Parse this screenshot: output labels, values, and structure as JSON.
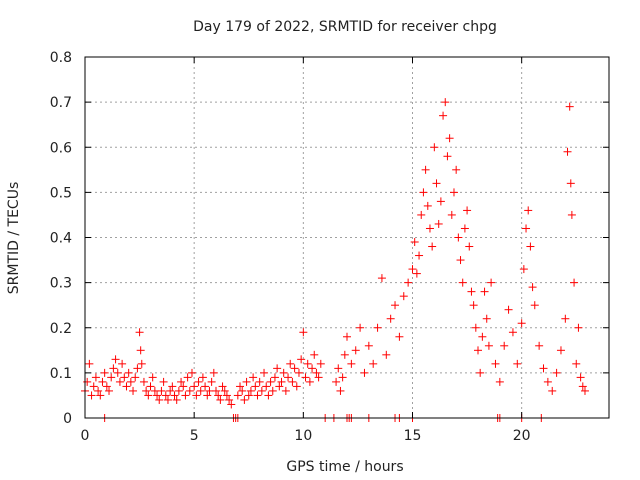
{
  "chart_data": {
    "type": "scatter",
    "title": "Day 179 of 2022, SRMTID for receiver chpg",
    "xlabel": "GPS time / hours",
    "ylabel": "SRMTID / TECUs",
    "xlim": [
      0,
      24
    ],
    "ylim": [
      0,
      0.8
    ],
    "xticks": [
      0,
      5,
      10,
      15,
      20
    ],
    "yticks": [
      0,
      0.1,
      0.2,
      0.3,
      0.4,
      0.5,
      0.6,
      0.7,
      0.8
    ],
    "xtick_labels": [
      "0",
      "5",
      "10",
      "15",
      "20"
    ],
    "ytick_labels": [
      "0",
      "0.1",
      "0.2",
      "0.3",
      "0.4",
      "0.5",
      "0.6",
      "0.7",
      "0.8"
    ],
    "grid": true,
    "marker": "+",
    "series": [
      {
        "name": "SRMTID",
        "color": "#ff0000",
        "x": [
          0.0,
          0.1,
          0.2,
          0.3,
          0.4,
          0.5,
          0.6,
          0.7,
          0.8,
          0.9,
          1.0,
          1.1,
          1.2,
          1.3,
          1.4,
          1.5,
          1.6,
          1.7,
          1.8,
          1.9,
          2.0,
          2.1,
          2.2,
          2.3,
          2.4,
          2.5,
          2.55,
          2.6,
          2.7,
          2.8,
          2.9,
          3.0,
          3.1,
          3.2,
          3.3,
          3.4,
          3.5,
          3.6,
          3.7,
          3.8,
          3.9,
          4.0,
          4.1,
          4.2,
          4.3,
          4.4,
          4.5,
          4.6,
          4.7,
          4.8,
          4.9,
          5.0,
          5.1,
          5.2,
          5.3,
          5.4,
          5.5,
          5.6,
          5.7,
          5.8,
          5.9,
          6.0,
          6.1,
          6.2,
          6.3,
          6.4,
          6.5,
          6.6,
          6.7,
          7.0,
          7.1,
          7.2,
          7.3,
          7.4,
          7.5,
          7.6,
          7.7,
          7.8,
          7.9,
          8.0,
          8.1,
          8.2,
          8.3,
          8.4,
          8.5,
          8.6,
          8.7,
          8.8,
          8.9,
          9.0,
          9.1,
          9.2,
          9.3,
          9.4,
          9.5,
          9.6,
          9.7,
          9.8,
          9.9,
          10.0,
          10.1,
          10.2,
          10.3,
          10.4,
          10.5,
          10.6,
          10.7,
          10.8,
          11.5,
          11.6,
          11.7,
          11.8,
          11.9,
          12.0,
          12.2,
          12.4,
          12.6,
          12.8,
          13.0,
          13.2,
          13.4,
          13.6,
          13.8,
          14.0,
          14.2,
          14.4,
          14.6,
          14.8,
          15.0,
          15.1,
          15.2,
          15.3,
          15.4,
          15.5,
          15.6,
          15.7,
          15.8,
          15.9,
          16.0,
          16.1,
          16.2,
          16.3,
          16.4,
          16.5,
          16.6,
          16.7,
          16.8,
          16.9,
          17.0,
          17.1,
          17.2,
          17.3,
          17.4,
          17.5,
          17.6,
          17.7,
          17.8,
          17.9,
          18.0,
          18.1,
          18.2,
          18.3,
          18.4,
          18.5,
          18.6,
          18.8,
          19.0,
          19.2,
          19.4,
          19.6,
          19.8,
          20.0,
          20.1,
          20.2,
          20.3,
          20.4,
          20.5,
          20.6,
          20.8,
          21.0,
          21.2,
          21.4,
          21.6,
          21.8,
          22.0,
          22.1,
          22.2,
          22.25,
          22.3,
          22.4,
          22.5,
          22.6,
          22.7,
          22.8,
          22.9,
          0.9,
          6.8,
          6.9,
          7.0,
          11.0,
          11.4,
          12.0,
          12.1,
          12.2,
          13.0,
          14.2,
          14.4,
          15.0,
          18.9,
          19.0,
          20.0,
          20.9
        ],
        "y": [
          0.06,
          0.08,
          0.12,
          0.05,
          0.07,
          0.09,
          0.06,
          0.05,
          0.08,
          0.1,
          0.07,
          0.06,
          0.09,
          0.11,
          0.13,
          0.1,
          0.08,
          0.12,
          0.09,
          0.07,
          0.1,
          0.08,
          0.06,
          0.09,
          0.11,
          0.19,
          0.15,
          0.12,
          0.08,
          0.06,
          0.05,
          0.07,
          0.09,
          0.06,
          0.05,
          0.04,
          0.06,
          0.08,
          0.05,
          0.04,
          0.06,
          0.07,
          0.05,
          0.04,
          0.06,
          0.08,
          0.07,
          0.05,
          0.09,
          0.06,
          0.1,
          0.07,
          0.05,
          0.08,
          0.06,
          0.09,
          0.07,
          0.05,
          0.06,
          0.08,
          0.1,
          0.06,
          0.05,
          0.04,
          0.07,
          0.06,
          0.05,
          0.04,
          0.03,
          0.05,
          0.07,
          0.06,
          0.04,
          0.08,
          0.05,
          0.06,
          0.09,
          0.07,
          0.05,
          0.08,
          0.06,
          0.1,
          0.07,
          0.05,
          0.08,
          0.06,
          0.09,
          0.11,
          0.07,
          0.08,
          0.1,
          0.06,
          0.09,
          0.12,
          0.08,
          0.11,
          0.07,
          0.1,
          0.13,
          0.19,
          0.09,
          0.12,
          0.08,
          0.11,
          0.14,
          0.1,
          0.09,
          0.12,
          0.08,
          0.11,
          0.06,
          0.09,
          0.14,
          0.18,
          0.12,
          0.15,
          0.2,
          0.1,
          0.16,
          0.12,
          0.2,
          0.31,
          0.14,
          0.22,
          0.25,
          0.18,
          0.27,
          0.3,
          0.33,
          0.39,
          0.32,
          0.36,
          0.45,
          0.5,
          0.55,
          0.47,
          0.42,
          0.38,
          0.6,
          0.52,
          0.43,
          0.48,
          0.67,
          0.7,
          0.58,
          0.62,
          0.45,
          0.5,
          0.55,
          0.4,
          0.35,
          0.3,
          0.42,
          0.46,
          0.38,
          0.28,
          0.25,
          0.2,
          0.15,
          0.1,
          0.18,
          0.28,
          0.22,
          0.16,
          0.3,
          0.12,
          0.08,
          0.16,
          0.24,
          0.19,
          0.12,
          0.21,
          0.33,
          0.42,
          0.46,
          0.38,
          0.29,
          0.25,
          0.16,
          0.11,
          0.08,
          0.06,
          0.1,
          0.15,
          0.22,
          0.59,
          0.69,
          0.52,
          0.45,
          0.3,
          0.12,
          0.2,
          0.09,
          0.07,
          0.06,
          0,
          0,
          0,
          0,
          0,
          0,
          0,
          0,
          0,
          0,
          0,
          0,
          0,
          0,
          0,
          0,
          0
        ]
      }
    ]
  }
}
